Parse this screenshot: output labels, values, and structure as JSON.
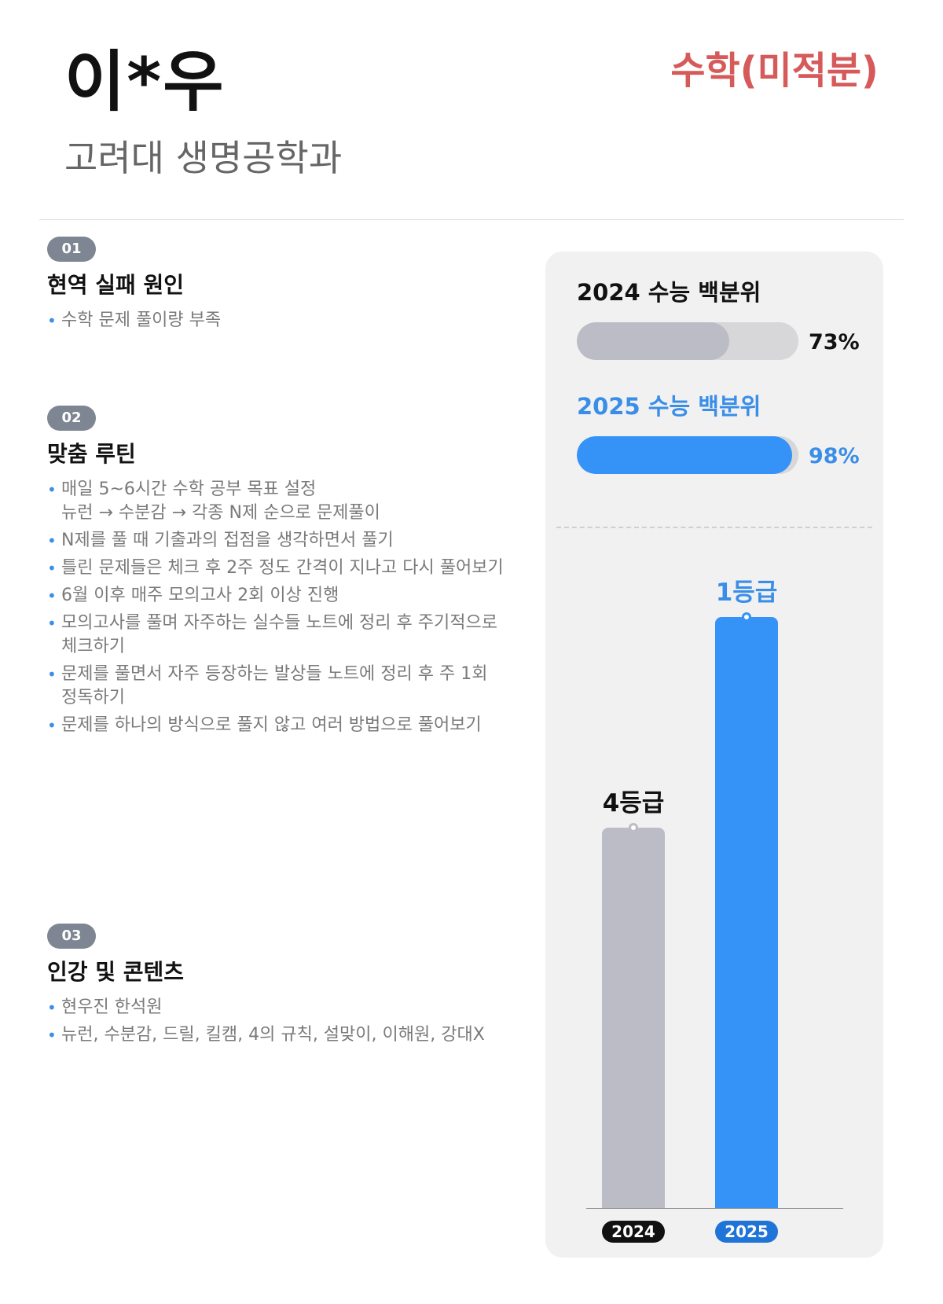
{
  "header": {
    "name": "이*우",
    "school": "고려대 생명공학과",
    "subject": "수학(미적분)"
  },
  "sections": [
    {
      "badge": "01",
      "title": "현역 실패 원인",
      "items": [
        "수학 문제 풀이량 부족"
      ]
    },
    {
      "badge": "02",
      "title": "맞춤 루틴",
      "items": [
        "매일 5~6시간 수학 공부 목표 설정\n뉴런 → 수분감 → 각종 N제 순으로 문제풀이",
        "N제를 풀 때 기출과의 접점을 생각하면서 풀기",
        "틀린 문제들은 체크 후 2주 정도 간격이 지나고 다시 풀어보기",
        "6월 이후 매주 모의고사 2회 이상 진행",
        "모의고사를 풀며 자주하는 실수들 노트에 정리 후 주기적으로\n체크하기",
        "문제를 풀면서 자주 등장하는 발상들 노트에 정리 후 주 1회\n정독하기",
        "문제를 하나의 방식으로 풀지 않고 여러 방법으로 풀어보기"
      ]
    },
    {
      "badge": "03",
      "title": "인강 및 콘텐츠",
      "items": [
        "현우진 한석원",
        "뉴런, 수분감, 드릴, 킬캠, 4의 규칙, 설맞이, 이해원, 강대X"
      ]
    }
  ],
  "colors": {
    "gray": "#bcbcc6",
    "blue": "#3593f8",
    "subject_red": "#d65a5a",
    "year_2024": "#111111",
    "year_2025": "#1f74d8"
  },
  "chart_data": [
    {
      "type": "bar",
      "orientation": "horizontal",
      "categories": [
        "2024 수능 백분위",
        "2025 수능 백분위"
      ],
      "values": [
        73,
        98
      ],
      "value_labels": [
        "73%",
        "98%"
      ],
      "xlim": [
        0,
        100
      ]
    },
    {
      "type": "bar",
      "categories": [
        "2024",
        "2025"
      ],
      "values": [
        4,
        1
      ],
      "value_labels": [
        "4등급",
        "1등급"
      ],
      "note": "grade rank (lower is better)"
    }
  ]
}
